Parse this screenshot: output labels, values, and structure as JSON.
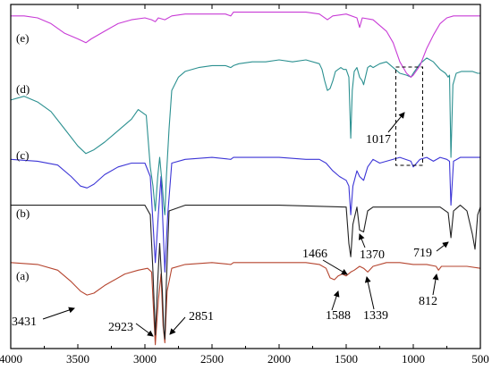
{
  "chart_data": {
    "type": "line",
    "title": "",
    "xlabel": "",
    "ylabel": "",
    "xlim": [
      4000,
      500
    ],
    "x_ticks": [
      "4000",
      "3500",
      "3000",
      "2500",
      "2000",
      "1500",
      "1000",
      "500"
    ],
    "grid": false,
    "series": [
      {
        "label": "(a)",
        "color": "#b5452f",
        "x": [
          4000,
          3800,
          3650,
          3550,
          3480,
          3431,
          3380,
          3300,
          3150,
          3050,
          2980,
          2950,
          2923,
          2900,
          2880,
          2865,
          2851,
          2835,
          2800,
          2700,
          2500,
          2360,
          2340,
          2200,
          2000,
          1800,
          1700,
          1650,
          1620,
          1588,
          1560,
          1530,
          1500,
          1466,
          1440,
          1400,
          1370,
          1339,
          1300,
          1200,
          1100,
          1000,
          900,
          830,
          812,
          790,
          700,
          600,
          500
        ],
        "values": [
          0.45,
          0.44,
          0.41,
          0.35,
          0.3,
          0.28,
          0.29,
          0.33,
          0.39,
          0.41,
          0.42,
          0.4,
          0.02,
          0.25,
          0.39,
          0.12,
          0.03,
          0.3,
          0.42,
          0.44,
          0.45,
          0.44,
          0.45,
          0.45,
          0.45,
          0.45,
          0.44,
          0.42,
          0.37,
          0.36,
          0.38,
          0.39,
          0.38,
          0.4,
          0.41,
          0.43,
          0.42,
          0.4,
          0.43,
          0.45,
          0.45,
          0.44,
          0.44,
          0.43,
          0.41,
          0.43,
          0.43,
          0.43,
          0.42
        ]
      },
      {
        "label": "(b)",
        "color": "#222222",
        "x": [
          4000,
          3500,
          3000,
          2960,
          2940,
          2923,
          2905,
          2890,
          2870,
          2860,
          2851,
          2840,
          2820,
          2700,
          2000,
          1500,
          1480,
          1466,
          1450,
          1420,
          1400,
          1370,
          1340,
          1300,
          1200,
          1000,
          800,
          740,
          719,
          700,
          650,
          600,
          560,
          540,
          520,
          500
        ],
        "values": [
          0.75,
          0.75,
          0.75,
          0.7,
          0.4,
          0.07,
          0.35,
          0.55,
          0.3,
          0.1,
          0.05,
          0.35,
          0.72,
          0.75,
          0.75,
          0.74,
          0.55,
          0.48,
          0.65,
          0.74,
          0.62,
          0.61,
          0.72,
          0.74,
          0.74,
          0.74,
          0.74,
          0.71,
          0.58,
          0.72,
          0.75,
          0.72,
          0.6,
          0.52,
          0.7,
          0.74
        ]
      },
      {
        "label": "(c)",
        "color": "#3c35d6",
        "x": [
          4000,
          3800,
          3650,
          3550,
          3480,
          3431,
          3380,
          3300,
          3200,
          3100,
          3000,
          2960,
          2923,
          2900,
          2880,
          2860,
          2851,
          2830,
          2800,
          2700,
          2500,
          2360,
          2340,
          2200,
          2000,
          1800,
          1700,
          1650,
          1600,
          1550,
          1500,
          1480,
          1466,
          1450,
          1420,
          1400,
          1370,
          1340,
          1300,
          1250,
          1200,
          1100,
          1017,
          1000,
          950,
          900,
          850,
          800,
          750,
          730,
          719,
          700,
          650,
          600,
          560,
          520,
          500
        ],
        "values": [
          0.99,
          0.98,
          0.96,
          0.9,
          0.85,
          0.84,
          0.86,
          0.91,
          0.95,
          0.97,
          0.97,
          0.9,
          0.45,
          0.7,
          0.9,
          0.55,
          0.4,
          0.7,
          0.97,
          0.99,
          1.0,
          0.99,
          1.0,
          1.0,
          1.0,
          0.99,
          0.99,
          0.97,
          0.93,
          0.9,
          0.88,
          0.85,
          0.7,
          0.85,
          0.93,
          0.9,
          0.88,
          0.95,
          0.99,
          0.97,
          0.98,
          1.0,
          0.98,
          0.95,
          0.99,
          1.0,
          0.98,
          1.0,
          0.99,
          0.98,
          0.75,
          0.98,
          1.0,
          1.0,
          1.0,
          1.0,
          1.0
        ]
      },
      {
        "label": "(d)",
        "color": "#2b9090",
        "x": [
          4000,
          3900,
          3800,
          3700,
          3600,
          3500,
          3440,
          3380,
          3300,
          3200,
          3100,
          3050,
          2990,
          2960,
          2940,
          2923,
          2905,
          2890,
          2870,
          2860,
          2851,
          2840,
          2820,
          2800,
          2750,
          2700,
          2600,
          2500,
          2400,
          2360,
          2340,
          2300,
          2200,
          2100,
          2000,
          1900,
          1800,
          1700,
          1680,
          1660,
          1640,
          1620,
          1600,
          1580,
          1560,
          1540,
          1520,
          1500,
          1480,
          1466,
          1455,
          1440,
          1420,
          1400,
          1380,
          1370,
          1350,
          1340,
          1320,
          1300,
          1250,
          1200,
          1150,
          1100,
          1050,
          1017,
          1000,
          950,
          900,
          850,
          800,
          760,
          740,
          730,
          719,
          705,
          680,
          640,
          600,
          560,
          520,
          500
        ],
        "values": [
          1.3,
          1.32,
          1.29,
          1.24,
          1.15,
          1.06,
          1.02,
          1.04,
          1.08,
          1.14,
          1.2,
          1.25,
          1.22,
          0.95,
          0.85,
          0.72,
          0.9,
          1.0,
          0.85,
          0.75,
          0.7,
          0.9,
          1.15,
          1.35,
          1.42,
          1.45,
          1.47,
          1.48,
          1.48,
          1.47,
          1.48,
          1.49,
          1.5,
          1.5,
          1.51,
          1.5,
          1.51,
          1.49,
          1.46,
          1.4,
          1.35,
          1.36,
          1.4,
          1.45,
          1.46,
          1.47,
          1.46,
          1.46,
          1.42,
          1.1,
          1.35,
          1.45,
          1.47,
          1.42,
          1.4,
          1.38,
          1.44,
          1.47,
          1.48,
          1.47,
          1.49,
          1.5,
          1.47,
          1.44,
          1.43,
          1.42,
          1.44,
          1.49,
          1.52,
          1.5,
          1.46,
          1.44,
          1.42,
          1.43,
          1.0,
          1.38,
          1.44,
          1.45,
          1.45,
          1.45,
          1.44,
          1.44
        ]
      },
      {
        "label": "(e)",
        "color": "#c83bd6",
        "x": [
          4000,
          3900,
          3800,
          3700,
          3600,
          3500,
          3440,
          3400,
          3300,
          3200,
          3100,
          3000,
          2950,
          2923,
          2900,
          2851,
          2800,
          2700,
          2600,
          2500,
          2400,
          2360,
          2340,
          2300,
          2200,
          2100,
          2000,
          1800,
          1700,
          1640,
          1600,
          1500,
          1420,
          1400,
          1380,
          1300,
          1200,
          1150,
          1100,
          1050,
          1017,
          1000,
          950,
          900,
          850,
          800,
          750,
          700,
          650,
          600,
          550,
          500
        ],
        "values": [
          1.74,
          1.74,
          1.73,
          1.7,
          1.65,
          1.62,
          1.6,
          1.62,
          1.66,
          1.7,
          1.72,
          1.73,
          1.72,
          1.71,
          1.73,
          1.72,
          1.74,
          1.75,
          1.75,
          1.75,
          1.75,
          1.74,
          1.76,
          1.76,
          1.76,
          1.76,
          1.76,
          1.76,
          1.75,
          1.72,
          1.74,
          1.75,
          1.73,
          1.68,
          1.73,
          1.72,
          1.66,
          1.6,
          1.5,
          1.44,
          1.42,
          1.43,
          1.48,
          1.57,
          1.64,
          1.7,
          1.73,
          1.74,
          1.74,
          1.74,
          1.74,
          1.74
        ]
      }
    ],
    "annotations": [
      {
        "text": "3431"
      },
      {
        "text": "2923"
      },
      {
        "text": "2851"
      },
      {
        "text": "1588"
      },
      {
        "text": "1466"
      },
      {
        "text": "1370"
      },
      {
        "text": "1339"
      },
      {
        "text": "812"
      },
      {
        "text": "719"
      },
      {
        "text": "1017"
      }
    ]
  }
}
